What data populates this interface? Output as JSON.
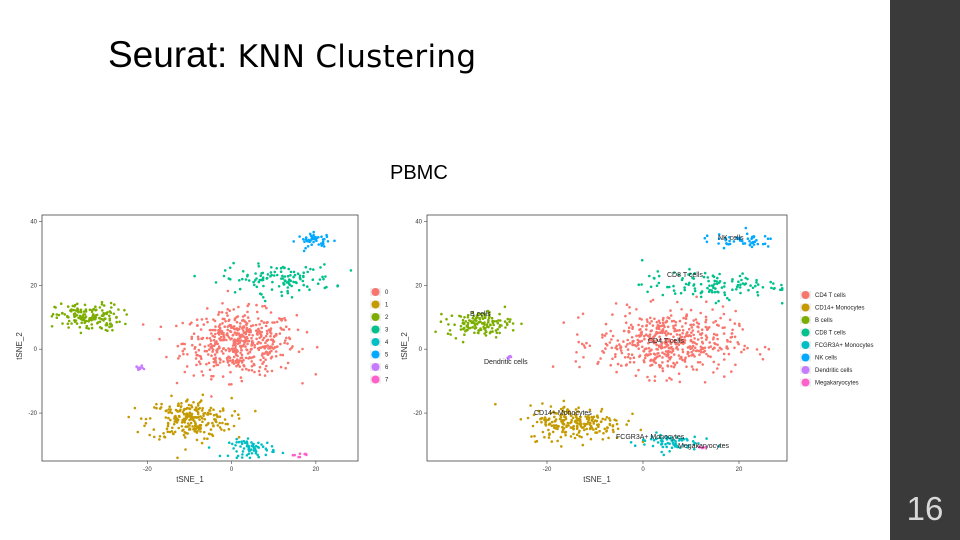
{
  "slide": {
    "title_prefix": "Seurat:",
    "title_rest": "KNN Clustering",
    "subtitle": "PBMC",
    "page_number": "16",
    "sidebar_color": "#3a3a3a"
  },
  "chart_data": [
    {
      "type": "scatter",
      "title": "",
      "xlabel": "tSNE_1",
      "ylabel": "tSNE_2",
      "xticks": [
        "-20",
        "0",
        "20"
      ],
      "yticks": [
        "40",
        "20",
        "0",
        "-20"
      ],
      "xlim": [
        -45,
        30
      ],
      "ylim": [
        -35,
        42
      ],
      "legend_position": "right",
      "legend": [
        "0",
        "1",
        "2",
        "3",
        "4",
        "5",
        "6",
        "7"
      ],
      "clusters": [
        {
          "name": "0",
          "color": "#F8766D",
          "center": [
            2,
            2
          ],
          "spread": [
            12,
            9
          ],
          "n": 520
        },
        {
          "name": "1",
          "color": "#C49A00",
          "center": [
            -10,
            -22
          ],
          "spread": [
            9,
            6
          ],
          "n": 240
        },
        {
          "name": "2",
          "color": "#7CAE00",
          "center": [
            -34,
            10
          ],
          "spread": [
            7,
            4
          ],
          "n": 160
        },
        {
          "name": "3",
          "color": "#00C08B",
          "center": [
            11,
            22
          ],
          "spread": [
            12,
            4
          ],
          "n": 120
        },
        {
          "name": "4",
          "color": "#00BFC4",
          "center": [
            5,
            -31
          ],
          "spread": [
            5,
            2.5
          ],
          "n": 70
        },
        {
          "name": "5",
          "color": "#00A9FF",
          "center": [
            20,
            34
          ],
          "spread": [
            4,
            2
          ],
          "n": 45
        },
        {
          "name": "6",
          "color": "#C77CFF",
          "center": [
            -22,
            -6
          ],
          "spread": [
            0.8,
            1.2
          ],
          "n": 10
        },
        {
          "name": "7",
          "color": "#FF61CC",
          "center": [
            16,
            -33
          ],
          "spread": [
            2,
            0.6
          ],
          "n": 8
        }
      ]
    },
    {
      "type": "scatter",
      "title": "",
      "xlabel": "tSNE_1",
      "ylabel": "tSNE_2",
      "xticks": [
        "-20",
        "0",
        "20"
      ],
      "yticks": [
        "40",
        "20",
        "0",
        "-20"
      ],
      "xlim": [
        -45,
        30
      ],
      "ylim": [
        -35,
        42
      ],
      "legend_position": "right",
      "legend": [
        "CD4 T cells",
        "CD14+ Monocytes",
        "B cells",
        "CD8 T cells",
        "FCGR3A+ Monocytes",
        "NK cells",
        "Dendritic cells",
        "Megakaryocytes"
      ],
      "annotations": [
        "NK cells",
        "CD8 T cells",
        "B cells",
        "CD4 T cells",
        "Dendritic cells",
        "CD14+ Monocytes",
        "FCGR3A+ Monocytes",
        "Megakaryocytes"
      ],
      "clusters": [
        {
          "name": "CD4 T cells",
          "color": "#F8766D",
          "center": [
            5,
            2
          ],
          "spread": [
            13,
            9
          ],
          "n": 520
        },
        {
          "name": "CD14+ Monocytes",
          "color": "#C49A00",
          "center": [
            -14,
            -23
          ],
          "spread": [
            9,
            5
          ],
          "n": 230
        },
        {
          "name": "B cells",
          "color": "#7CAE00",
          "center": [
            -34,
            8
          ],
          "spread": [
            6,
            3.5
          ],
          "n": 140
        },
        {
          "name": "CD8 T cells",
          "color": "#00C08B",
          "center": [
            14,
            20
          ],
          "spread": [
            13,
            4
          ],
          "n": 120
        },
        {
          "name": "FCGR3A+ Monocytes",
          "color": "#00BFC4",
          "center": [
            5,
            -29
          ],
          "spread": [
            6,
            2.5
          ],
          "n": 70
        },
        {
          "name": "NK cells",
          "color": "#00A9FF",
          "center": [
            20,
            34
          ],
          "spread": [
            7,
            2
          ],
          "n": 50
        },
        {
          "name": "Dendritic cells",
          "color": "#C77CFF",
          "center": [
            -28,
            -3
          ],
          "spread": [
            0.6,
            0.8
          ],
          "n": 6
        },
        {
          "name": "Megakaryocytes",
          "color": "#FF61CC",
          "center": [
            12,
            -31
          ],
          "spread": [
            1.5,
            0.5
          ],
          "n": 6
        }
      ]
    }
  ]
}
